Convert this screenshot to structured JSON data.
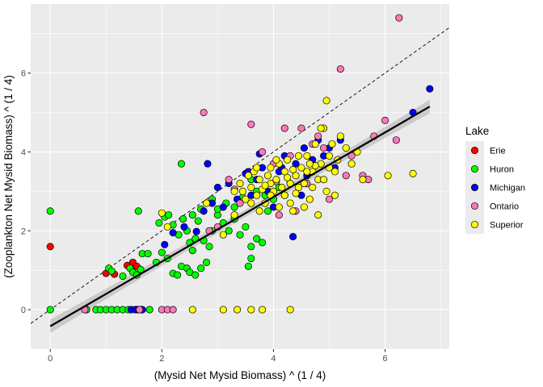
{
  "chart_data": {
    "type": "scatter",
    "xlabel": "(Mysid Net Mysid Biomass) ^ (1 / 4)",
    "ylabel": "(Zooplankton Net Mysid Biomass) ^ (1 / 4)",
    "xlim": [
      -0.35,
      7.15
    ],
    "ylim": [
      -1.0,
      7.75
    ],
    "x_ticks": [
      0,
      2,
      4,
      6
    ],
    "y_ticks": [
      0,
      2,
      4,
      6
    ],
    "grid": true,
    "legend": {
      "title": "Lake",
      "position": "right"
    },
    "reference_line": {
      "type": "1:1",
      "style": "dashed",
      "slope": 1,
      "intercept": 0
    },
    "fit_line": {
      "x": [
        0,
        6.8
      ],
      "y": [
        -0.42,
        5.15
      ],
      "band_halfwidth": 0.17
    },
    "series": [
      {
        "name": "Erie",
        "color": "#ff0000",
        "points": [
          [
            0,
            1.6
          ],
          [
            0.65,
            0
          ],
          [
            1.0,
            0.92
          ],
          [
            1.15,
            0.9
          ],
          [
            1.38,
            1.12
          ],
          [
            1.48,
            1.2
          ],
          [
            1.55,
            1.1
          ]
        ]
      },
      {
        "name": "Huron",
        "color": "#00ff00",
        "points": [
          [
            0,
            2.5
          ],
          [
            0,
            0
          ],
          [
            0.65,
            0
          ],
          [
            0.82,
            0
          ],
          [
            0.9,
            0
          ],
          [
            1.0,
            0
          ],
          [
            1.1,
            0
          ],
          [
            1.2,
            0
          ],
          [
            1.3,
            0
          ],
          [
            1.4,
            0
          ],
          [
            1.55,
            0
          ],
          [
            1.62,
            0
          ],
          [
            1.78,
            0
          ],
          [
            1.05,
            1.05
          ],
          [
            1.1,
            0.98
          ],
          [
            1.3,
            0.85
          ],
          [
            1.43,
            1.05
          ],
          [
            1.48,
            0.95
          ],
          [
            1.55,
            0.88
          ],
          [
            1.62,
            1.02
          ],
          [
            1.58,
            2.5
          ],
          [
            1.65,
            1.42
          ],
          [
            1.75,
            1.42
          ],
          [
            1.9,
            1.2
          ],
          [
            2.0,
            1.45
          ],
          [
            2.1,
            1.3
          ],
          [
            2.2,
            0.92
          ],
          [
            2.28,
            0.88
          ],
          [
            2.35,
            1.1
          ],
          [
            2.45,
            1.05
          ],
          [
            2.5,
            0.95
          ],
          [
            2.6,
            0.88
          ],
          [
            2.7,
            1.05
          ],
          [
            2.8,
            1.2
          ],
          [
            1.95,
            2.2
          ],
          [
            2.05,
            2.35
          ],
          [
            2.12,
            2.4
          ],
          [
            2.2,
            2.15
          ],
          [
            2.3,
            1.9
          ],
          [
            2.38,
            2.3
          ],
          [
            2.45,
            2.0
          ],
          [
            2.5,
            1.7
          ],
          [
            2.55,
            1.5
          ],
          [
            2.6,
            1.8
          ],
          [
            2.65,
            2.25
          ],
          [
            2.75,
            1.75
          ],
          [
            2.85,
            1.6
          ],
          [
            2.9,
            2.0
          ],
          [
            3.0,
            2.4
          ],
          [
            3.1,
            2.2
          ],
          [
            3.2,
            2.0
          ],
          [
            3.3,
            2.3
          ],
          [
            3.4,
            1.9
          ],
          [
            3.5,
            2.1
          ],
          [
            3.6,
            1.6
          ],
          [
            3.7,
            1.8
          ],
          [
            3.8,
            1.7
          ],
          [
            3.9,
            2.5
          ],
          [
            4.0,
            2.8
          ],
          [
            4.1,
            3.1
          ],
          [
            3.55,
            1.1
          ],
          [
            3.6,
            1.3
          ],
          [
            2.35,
            3.7
          ],
          [
            2.9,
            2.8
          ],
          [
            3.0,
            2.55
          ],
          [
            3.15,
            2.7
          ],
          [
            3.3,
            2.6
          ],
          [
            3.45,
            2.85
          ],
          [
            3.6,
            3.3
          ],
          [
            3.7,
            3.0
          ],
          [
            3.85,
            2.9
          ],
          [
            4.2,
            2.9
          ],
          [
            2.55,
            2.4
          ],
          [
            2.7,
            2.55
          ]
        ]
      },
      {
        "name": "Michigan",
        "color": "#0000ff",
        "points": [
          [
            1.45,
            0
          ],
          [
            1.52,
            0
          ],
          [
            1.58,
            0
          ],
          [
            1.65,
            0
          ],
          [
            2.05,
            1.65
          ],
          [
            2.2,
            1.95
          ],
          [
            2.4,
            2.1
          ],
          [
            2.62,
            1.98
          ],
          [
            2.75,
            2.5
          ],
          [
            2.82,
            3.7
          ],
          [
            2.9,
            2.7
          ],
          [
            3.0,
            3.1
          ],
          [
            3.1,
            2.6
          ],
          [
            3.2,
            3.2
          ],
          [
            3.35,
            2.8
          ],
          [
            3.5,
            3.45
          ],
          [
            3.6,
            2.9
          ],
          [
            3.7,
            3.3
          ],
          [
            3.8,
            3.6
          ],
          [
            3.9,
            3.0
          ],
          [
            4.0,
            2.6
          ],
          [
            4.1,
            3.5
          ],
          [
            4.2,
            3.9
          ],
          [
            4.3,
            3.2
          ],
          [
            4.35,
            1.85
          ],
          [
            4.4,
            3.7
          ],
          [
            4.5,
            2.9
          ],
          [
            4.6,
            3.4
          ],
          [
            4.7,
            3.8
          ],
          [
            4.8,
            4.3
          ],
          [
            4.9,
            3.9
          ],
          [
            5.0,
            4.1
          ],
          [
            5.1,
            3.6
          ],
          [
            5.2,
            4.3
          ],
          [
            3.55,
            3.5
          ],
          [
            3.75,
            3.95
          ],
          [
            4.15,
            3.6
          ],
          [
            4.55,
            4.1
          ],
          [
            6.5,
            5.0
          ],
          [
            6.8,
            5.6
          ]
        ]
      },
      {
        "name": "Ontario",
        "color": "#ff77bb",
        "points": [
          [
            0.62,
            0
          ],
          [
            1.6,
            0
          ],
          [
            2.0,
            0
          ],
          [
            2.1,
            0
          ],
          [
            2.2,
            0
          ],
          [
            2.75,
            5.0
          ],
          [
            2.85,
            2.0
          ],
          [
            3.0,
            2.1
          ],
          [
            3.2,
            3.3
          ],
          [
            3.4,
            2.7
          ],
          [
            3.6,
            4.7
          ],
          [
            3.8,
            4.0
          ],
          [
            4.0,
            3.7
          ],
          [
            4.1,
            2.4
          ],
          [
            4.2,
            4.6
          ],
          [
            4.3,
            3.9
          ],
          [
            4.5,
            4.6
          ],
          [
            4.6,
            3.2
          ],
          [
            4.7,
            4.2
          ],
          [
            4.8,
            4.4
          ],
          [
            4.9,
            4.1
          ],
          [
            5.2,
            6.1
          ],
          [
            5.3,
            3.4
          ],
          [
            5.4,
            3.9
          ],
          [
            5.6,
            3.4
          ],
          [
            5.7,
            3.3
          ],
          [
            5.8,
            4.4
          ],
          [
            6.0,
            4.8
          ],
          [
            6.2,
            4.3
          ],
          [
            6.25,
            7.4
          ],
          [
            3.3,
            3.05
          ],
          [
            4.4,
            2.5
          ],
          [
            5.0,
            2.8
          ],
          [
            4.05,
            3.25
          ]
        ]
      },
      {
        "name": "Superior",
        "color": "#ffff00",
        "points": [
          [
            2.55,
            0
          ],
          [
            3.1,
            0
          ],
          [
            3.35,
            0
          ],
          [
            3.6,
            0
          ],
          [
            3.8,
            0
          ],
          [
            4.3,
            0
          ],
          [
            2.0,
            2.45
          ],
          [
            2.1,
            2.1
          ],
          [
            2.8,
            2.7
          ],
          [
            3.1,
            1.9
          ],
          [
            3.3,
            3.0
          ],
          [
            3.4,
            3.2
          ],
          [
            3.5,
            2.8
          ],
          [
            3.6,
            3.1
          ],
          [
            3.65,
            3.5
          ],
          [
            3.7,
            2.9
          ],
          [
            3.75,
            3.3
          ],
          [
            3.8,
            3.05
          ],
          [
            3.85,
            2.7
          ],
          [
            3.9,
            3.4
          ],
          [
            3.95,
            3.2
          ],
          [
            4.0,
            3.0
          ],
          [
            4.05,
            3.3
          ],
          [
            4.1,
            2.6
          ],
          [
            4.15,
            3.1
          ],
          [
            4.2,
            3.5
          ],
          [
            4.25,
            3.8
          ],
          [
            4.3,
            3.2
          ],
          [
            4.35,
            2.5
          ],
          [
            4.4,
            3.4
          ],
          [
            4.45,
            3.9
          ],
          [
            4.5,
            3.6
          ],
          [
            4.55,
            3.2
          ],
          [
            4.6,
            3.9
          ],
          [
            4.65,
            2.8
          ],
          [
            4.7,
            3.5
          ],
          [
            4.75,
            4.2
          ],
          [
            4.8,
            3.3
          ],
          [
            4.85,
            3.7
          ],
          [
            4.9,
            4.6
          ],
          [
            4.95,
            3.0
          ],
          [
            5.0,
            3.9
          ],
          [
            5.05,
            4.2
          ],
          [
            5.1,
            3.5
          ],
          [
            5.15,
            3.8
          ],
          [
            5.2,
            4.4
          ],
          [
            5.3,
            4.1
          ],
          [
            5.4,
            3.7
          ],
          [
            5.5,
            4.0
          ],
          [
            5.6,
            3.3
          ],
          [
            6.05,
            3.4
          ],
          [
            6.5,
            3.45
          ],
          [
            4.95,
            5.3
          ],
          [
            4.85,
            4.6
          ],
          [
            3.3,
            2.4
          ],
          [
            3.55,
            3.4
          ],
          [
            3.7,
            3.6
          ],
          [
            3.85,
            3.15
          ],
          [
            3.95,
            2.9
          ],
          [
            4.1,
            3.7
          ],
          [
            4.2,
            2.9
          ],
          [
            4.3,
            2.7
          ],
          [
            4.35,
            3.55
          ],
          [
            4.45,
            3.1
          ],
          [
            4.55,
            2.6
          ],
          [
            4.6,
            3.5
          ],
          [
            4.7,
            3.1
          ],
          [
            4.75,
            3.65
          ],
          [
            4.8,
            2.4
          ],
          [
            4.9,
            3.3
          ],
          [
            5.0,
            3.6
          ],
          [
            5.1,
            2.9
          ],
          [
            3.95,
            3.6
          ],
          [
            4.05,
            3.8
          ],
          [
            4.25,
            3.35
          ],
          [
            4.4,
            2.95
          ],
          [
            4.65,
            3.7
          ],
          [
            3.6,
            2.7
          ],
          [
            3.45,
            3.0
          ],
          [
            3.75,
            2.5
          ]
        ]
      }
    ]
  }
}
